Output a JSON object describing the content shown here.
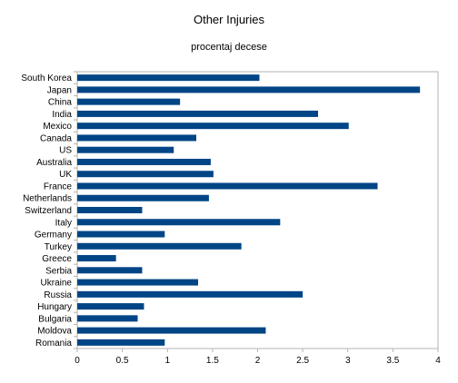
{
  "chart_data": {
    "type": "bar",
    "orientation": "horizontal",
    "title": "Other Injuries",
    "subtitle": "procentaj decese",
    "xlabel": "",
    "ylabel": "",
    "categories": [
      "South Korea",
      "Japan",
      "China",
      "India",
      "Mexico",
      "Canada",
      "US",
      "Australia",
      "UK",
      "France",
      "Netherlands",
      "Switzerland",
      "Italy",
      "Germany",
      "Turkey",
      "Greece",
      "Serbia",
      "Ukraine",
      "Russia",
      "Hungary",
      "Bulgaria",
      "Moldova",
      "Romania"
    ],
    "values": [
      2.02,
      3.8,
      1.14,
      2.67,
      3.01,
      1.32,
      1.07,
      1.48,
      1.51,
      3.33,
      1.46,
      0.72,
      2.25,
      0.97,
      1.82,
      0.43,
      0.72,
      1.34,
      2.5,
      0.74,
      0.67,
      2.09,
      0.97
    ],
    "xlim": [
      0,
      4
    ],
    "xticks": [
      "0",
      "0.5",
      "1",
      "1.5",
      "2",
      "2.5",
      "3",
      "3.5",
      "4"
    ],
    "grid": false,
    "legend": "none",
    "bar_color": "#004586"
  }
}
